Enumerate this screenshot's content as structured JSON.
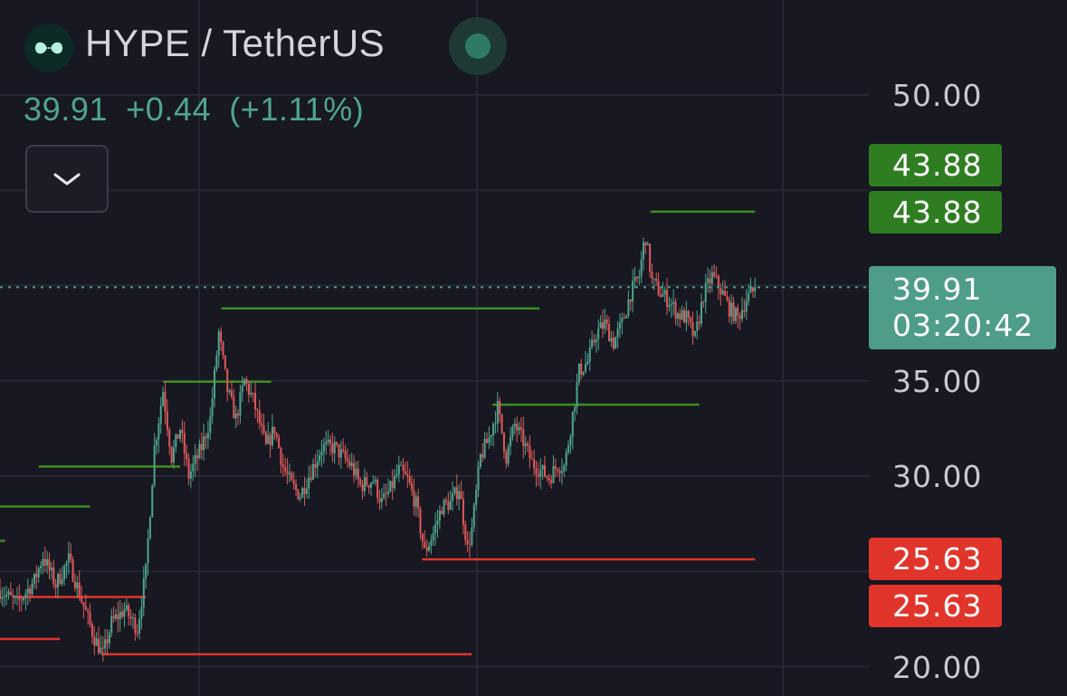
{
  "header": {
    "symbol": "HYPE / TetherUS",
    "last_price": "39.91",
    "change": "+0.44",
    "change_percent": "(+1.11%)"
  },
  "icons": {
    "logo": "hyperliquid-logo-icon",
    "status": "market-status-dot-icon",
    "collapse": "chevron-down-icon"
  },
  "colors": {
    "background": "#171821",
    "up": "#4fa58e",
    "down": "#e05a5a",
    "resistance": "#3d8d1f",
    "support": "#e1342b",
    "accent": "#4e9c8a"
  },
  "price_axis": {
    "labels": [
      "50.00",
      "35.00",
      "30.00",
      "20.00"
    ]
  },
  "tags": {
    "resistance_1": "43.88",
    "resistance_2": "43.88",
    "current_price": "39.91",
    "countdown": "03:20:42",
    "support_1": "25.63",
    "support_2": "25.63"
  },
  "chart_data": {
    "type": "candlestick",
    "symbol": "HYPE / TetherUS",
    "last_price": 39.91,
    "ylim": [
      19.5,
      51.5
    ],
    "y_ticks": [
      20,
      25,
      30,
      35,
      40,
      45,
      50
    ],
    "y_tick_labels_shown": [
      "50.00",
      "35.00",
      "30.00",
      "20.00"
    ],
    "grid": true,
    "price_path": [
      [
        0.0,
        24.0
      ],
      [
        2.0,
        23.3
      ],
      [
        4.0,
        24.5
      ],
      [
        5.0,
        25.8
      ],
      [
        6.5,
        24.3
      ],
      [
        8.0,
        25.6
      ],
      [
        9.5,
        23.5
      ],
      [
        11.0,
        21.5
      ],
      [
        12.0,
        20.6
      ],
      [
        13.0,
        22.3
      ],
      [
        14.5,
        23.0
      ],
      [
        16.0,
        22.0
      ],
      [
        17.0,
        25.0
      ],
      [
        18.0,
        31.5
      ],
      [
        19.0,
        34.5
      ],
      [
        20.0,
        31.0
      ],
      [
        21.0,
        32.5
      ],
      [
        22.0,
        30.0
      ],
      [
        23.5,
        31.5
      ],
      [
        24.5,
        33.0
      ],
      [
        25.5,
        37.5
      ],
      [
        26.5,
        34.5
      ],
      [
        27.5,
        33.0
      ],
      [
        28.5,
        35.0
      ],
      [
        29.5,
        34.0
      ],
      [
        31.0,
        31.5
      ],
      [
        32.0,
        32.5
      ],
      [
        33.0,
        30.5
      ],
      [
        34.0,
        29.5
      ],
      [
        35.0,
        29.0
      ],
      [
        36.0,
        30.0
      ],
      [
        37.5,
        31.5
      ],
      [
        39.0,
        31.5
      ],
      [
        40.0,
        31.0
      ],
      [
        41.0,
        30.5
      ],
      [
        42.0,
        29.5
      ],
      [
        43.5,
        29.8
      ],
      [
        44.5,
        28.6
      ],
      [
        45.5,
        29.3
      ],
      [
        46.5,
        30.3
      ],
      [
        47.5,
        29.8
      ],
      [
        48.5,
        28.5
      ],
      [
        49.5,
        26.0
      ],
      [
        50.5,
        27.0
      ],
      [
        51.5,
        28.4
      ],
      [
        52.5,
        28.6
      ],
      [
        53.5,
        29.4
      ],
      [
        54.5,
        26.2
      ],
      [
        55.0,
        27.2
      ],
      [
        56.0,
        31.0
      ],
      [
        57.0,
        32.0
      ],
      [
        58.0,
        33.6
      ],
      [
        59.0,
        31.0
      ],
      [
        60.0,
        32.7
      ],
      [
        61.0,
        31.8
      ],
      [
        62.0,
        30.7
      ],
      [
        63.0,
        30.3
      ],
      [
        64.0,
        29.9
      ],
      [
        65.0,
        30.6
      ],
      [
        65.8,
        30.5
      ],
      [
        66.5,
        32.5
      ],
      [
        67.5,
        35.5
      ],
      [
        68.5,
        36.0
      ],
      [
        69.5,
        37.5
      ],
      [
        70.5,
        38.0
      ],
      [
        71.5,
        37.0
      ],
      [
        72.5,
        38.0
      ],
      [
        73.5,
        39.6
      ],
      [
        74.5,
        40.5
      ],
      [
        75.2,
        42.7
      ],
      [
        76.0,
        40.2
      ],
      [
        77.0,
        39.6
      ],
      [
        78.0,
        39.2
      ],
      [
        79.0,
        38.5
      ],
      [
        80.0,
        38.3
      ],
      [
        81.0,
        37.2
      ],
      [
        82.0,
        39.5
      ],
      [
        83.0,
        40.5
      ],
      [
        84.0,
        39.8
      ],
      [
        85.0,
        38.8
      ],
      [
        86.0,
        38.3
      ],
      [
        87.0,
        39.3
      ],
      [
        88.0,
        39.8
      ]
    ],
    "resistance_lines": [
      {
        "price": 26.6,
        "x_start": -1,
        "x_end": 0.6
      },
      {
        "price": 28.4,
        "x_start": -1,
        "x_end": 10.5
      },
      {
        "price": 30.5,
        "x_start": 4.5,
        "x_end": 21.0
      },
      {
        "price": 34.95,
        "x_start": 19.0,
        "x_end": 31.6
      },
      {
        "price": 38.8,
        "x_start": 25.8,
        "x_end": 62.9
      },
      {
        "price": 33.75,
        "x_start": 57.4,
        "x_end": 81.5
      },
      {
        "price": 43.88,
        "x_start": 75.8,
        "x_end": 88.0
      }
    ],
    "support_lines": [
      {
        "price": 21.45,
        "x_start": -1,
        "x_end": 7.0
      },
      {
        "price": 23.65,
        "x_start": 1.6,
        "x_end": 17.0
      },
      {
        "price": 20.65,
        "x_start": 11.8,
        "x_end": 55.0
      },
      {
        "price": 25.63,
        "x_start": 49.2,
        "x_end": 88.0
      }
    ]
  }
}
